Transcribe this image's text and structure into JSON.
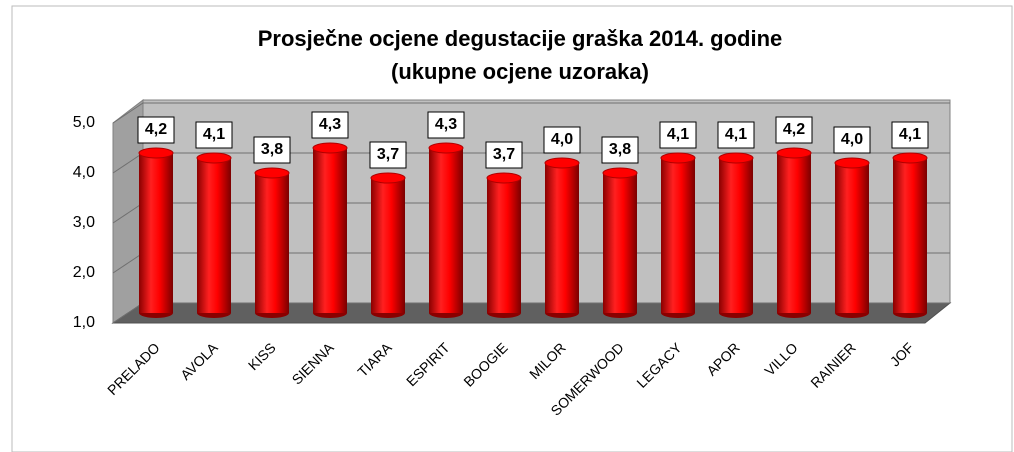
{
  "chart_data": {
    "type": "bar3d",
    "title": "Prosječne ocjene degustacije graška 2014. godine",
    "subtitle": "(ukupne ocjene uzoraka)",
    "categories": [
      "PRELADO",
      "AVOLA",
      "KISS",
      "SIENNA",
      "TIARA",
      "ESPIRIT",
      "BOOGIE",
      "MILOR",
      "SOMERWOOD",
      "LEGACY",
      "APOR",
      "VILLO",
      "RAINIER",
      "JOF"
    ],
    "values": [
      4.2,
      4.1,
      3.8,
      4.3,
      3.7,
      4.3,
      3.7,
      4.0,
      3.8,
      4.1,
      4.1,
      4.2,
      4.0,
      4.1
    ],
    "value_labels": [
      "4,2",
      "4,1",
      "3,8",
      "4,3",
      "3,7",
      "4,3",
      "3,7",
      "4,0",
      "3,8",
      "4,1",
      "4,1",
      "4,2",
      "4,0",
      "4,1"
    ],
    "color": "#ff0000",
    "ylim": [
      1,
      5
    ],
    "yticks": [
      {
        "value": 1,
        "label": "1,0"
      },
      {
        "value": 2,
        "label": "2,0"
      },
      {
        "value": 3,
        "label": "3,0"
      },
      {
        "value": 4,
        "label": "4,0"
      },
      {
        "value": 5,
        "label": "5,0"
      }
    ],
    "grid": true
  }
}
